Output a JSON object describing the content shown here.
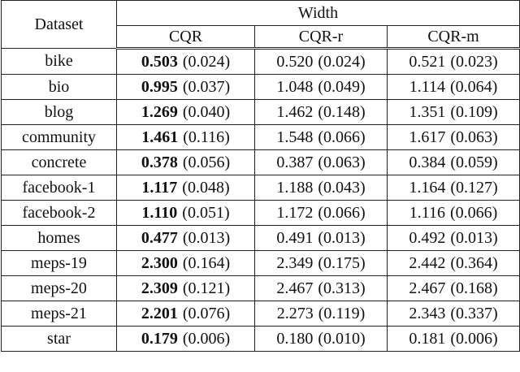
{
  "table": {
    "header": {
      "dataset": "Dataset",
      "group": "Width",
      "columns": [
        "CQR",
        "CQR-r",
        "CQR-m"
      ]
    },
    "rows": [
      {
        "dataset": "bike",
        "cells": [
          [
            "0.503",
            "(0.024)"
          ],
          [
            "0.520",
            "(0.024)"
          ],
          [
            "0.521",
            "(0.023)"
          ]
        ]
      },
      {
        "dataset": "bio",
        "cells": [
          [
            "0.995",
            "(0.037)"
          ],
          [
            "1.048",
            "(0.049)"
          ],
          [
            "1.114",
            "(0.064)"
          ]
        ]
      },
      {
        "dataset": "blog",
        "cells": [
          [
            "1.269",
            "(0.040)"
          ],
          [
            "1.462",
            "(0.148)"
          ],
          [
            "1.351",
            "(0.109)"
          ]
        ]
      },
      {
        "dataset": "community",
        "cells": [
          [
            "1.461",
            "(0.116)"
          ],
          [
            "1.548",
            "(0.066)"
          ],
          [
            "1.617",
            "(0.063)"
          ]
        ]
      },
      {
        "dataset": "concrete",
        "cells": [
          [
            "0.378",
            "(0.056)"
          ],
          [
            "0.387",
            "(0.063)"
          ],
          [
            "0.384",
            "(0.059)"
          ]
        ]
      },
      {
        "dataset": "facebook-1",
        "cells": [
          [
            "1.117",
            "(0.048)"
          ],
          [
            "1.188",
            "(0.043)"
          ],
          [
            "1.164",
            "(0.127)"
          ]
        ]
      },
      {
        "dataset": "facebook-2",
        "cells": [
          [
            "1.110",
            "(0.051)"
          ],
          [
            "1.172",
            "(0.066)"
          ],
          [
            "1.116",
            "(0.066)"
          ]
        ]
      },
      {
        "dataset": "homes",
        "cells": [
          [
            "0.477",
            "(0.013)"
          ],
          [
            "0.491",
            "(0.013)"
          ],
          [
            "0.492",
            "(0.013)"
          ]
        ]
      },
      {
        "dataset": "meps-19",
        "cells": [
          [
            "2.300",
            "(0.164)"
          ],
          [
            "2.349",
            "(0.175)"
          ],
          [
            "2.442",
            "(0.364)"
          ]
        ]
      },
      {
        "dataset": "meps-20",
        "cells": [
          [
            "2.309",
            "(0.121)"
          ],
          [
            "2.467",
            "(0.313)"
          ],
          [
            "2.467",
            "(0.168)"
          ]
        ]
      },
      {
        "dataset": "meps-21",
        "cells": [
          [
            "2.201",
            "(0.076)"
          ],
          [
            "2.273",
            "(0.119)"
          ],
          [
            "2.343",
            "(0.337)"
          ]
        ]
      },
      {
        "dataset": "star",
        "cells": [
          [
            "0.179",
            "(0.006)"
          ],
          [
            "0.180",
            "(0.010)"
          ],
          [
            "0.181",
            "(0.006)"
          ]
        ]
      }
    ]
  }
}
